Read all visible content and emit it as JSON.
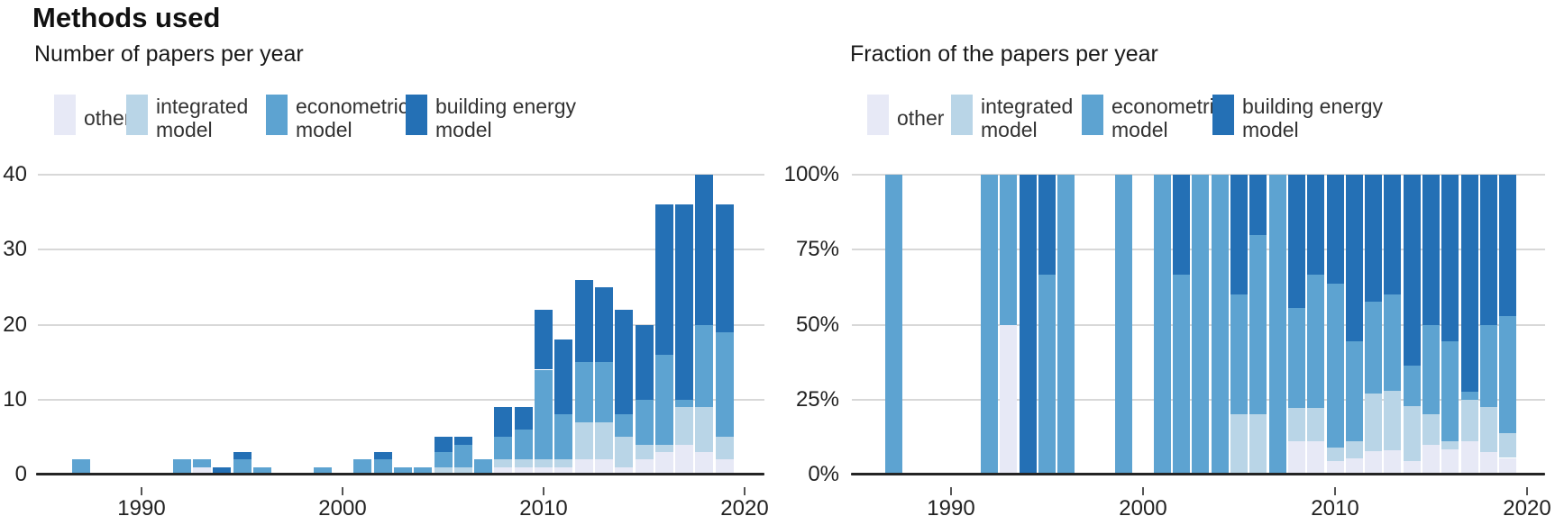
{
  "title": "Methods used",
  "colors": {
    "other": "#e7e9f6",
    "integrated": "#b9d5e7",
    "econometric": "#5da3d1",
    "building": "#2470b5",
    "gridline": "#d8d8d8",
    "axis": "#242424",
    "text": "#1a1a1a"
  },
  "legend": {
    "items": [
      {
        "key": "other",
        "label": "other",
        "label_lines": [
          "other"
        ]
      },
      {
        "key": "integrated",
        "label": "integrated model",
        "label_lines": [
          "integrated",
          "model"
        ]
      },
      {
        "key": "econometric",
        "label": "econometric model",
        "label_lines": [
          "econometric",
          "model"
        ]
      },
      {
        "key": "building",
        "label": "building energy model",
        "label_lines": [
          "building energy",
          "model"
        ]
      }
    ]
  },
  "chart_data": [
    {
      "type": "bar",
      "stacked": true,
      "title": "Number of papers per year",
      "xlabel": "",
      "ylabel": "",
      "ylim": [
        0,
        40
      ],
      "yticks": [
        0,
        10,
        20,
        30,
        40
      ],
      "ytick_labels": [
        "0",
        "10",
        "20",
        "30",
        "40"
      ],
      "xticks": [
        1990,
        2000,
        2010,
        2020
      ],
      "xtick_labels": [
        "1990",
        "2000",
        "2010",
        "2020"
      ],
      "grid": "horizontal",
      "legend_position": "top",
      "series_order": [
        "other",
        "integrated",
        "econometric",
        "building"
      ],
      "bars": [
        {
          "year": 1987,
          "other": 0,
          "integrated": 0,
          "econometric": 2,
          "building": 0
        },
        {
          "year": 1992,
          "other": 0,
          "integrated": 0,
          "econometric": 2,
          "building": 0
        },
        {
          "year": 1993,
          "other": 1,
          "integrated": 0,
          "econometric": 1,
          "building": 0
        },
        {
          "year": 1994,
          "other": 0,
          "integrated": 0,
          "econometric": 0,
          "building": 1
        },
        {
          "year": 1995,
          "other": 0,
          "integrated": 0,
          "econometric": 2,
          "building": 1
        },
        {
          "year": 1996,
          "other": 0,
          "integrated": 0,
          "econometric": 1,
          "building": 0
        },
        {
          "year": 1999,
          "other": 0,
          "integrated": 0,
          "econometric": 1,
          "building": 0
        },
        {
          "year": 2001,
          "other": 0,
          "integrated": 0,
          "econometric": 2,
          "building": 0
        },
        {
          "year": 2002,
          "other": 0,
          "integrated": 0,
          "econometric": 2,
          "building": 1
        },
        {
          "year": 2003,
          "other": 0,
          "integrated": 0,
          "econometric": 1,
          "building": 0
        },
        {
          "year": 2004,
          "other": 0,
          "integrated": 0,
          "econometric": 1,
          "building": 0
        },
        {
          "year": 2005,
          "other": 0,
          "integrated": 1,
          "econometric": 2,
          "building": 2
        },
        {
          "year": 2006,
          "other": 0,
          "integrated": 1,
          "econometric": 3,
          "building": 1
        },
        {
          "year": 2007,
          "other": 0,
          "integrated": 0,
          "econometric": 2,
          "building": 0
        },
        {
          "year": 2008,
          "other": 1,
          "integrated": 1,
          "econometric": 3,
          "building": 4
        },
        {
          "year": 2009,
          "other": 1,
          "integrated": 1,
          "econometric": 4,
          "building": 3
        },
        {
          "year": 2010,
          "other": 1,
          "integrated": 1,
          "econometric": 12,
          "building": 8
        },
        {
          "year": 2011,
          "other": 1,
          "integrated": 1,
          "econometric": 6,
          "building": 10
        },
        {
          "year": 2012,
          "other": 2,
          "integrated": 5,
          "econometric": 8,
          "building": 11
        },
        {
          "year": 2013,
          "other": 2,
          "integrated": 5,
          "econometric": 8,
          "building": 10
        },
        {
          "year": 2014,
          "other": 1,
          "integrated": 4,
          "econometric": 3,
          "building": 14
        },
        {
          "year": 2015,
          "other": 2,
          "integrated": 2,
          "econometric": 6,
          "building": 10
        },
        {
          "year": 2016,
          "other": 3,
          "integrated": 1,
          "econometric": 12,
          "building": 20
        },
        {
          "year": 2017,
          "other": 4,
          "integrated": 5,
          "econometric": 1,
          "building": 26
        },
        {
          "year": 2018,
          "other": 3,
          "integrated": 6,
          "econometric": 11,
          "building": 20
        },
        {
          "year": 2019,
          "other": 2,
          "integrated": 3,
          "econometric": 14,
          "building": 17
        }
      ]
    },
    {
      "type": "bar",
      "stacked": true,
      "normalized": true,
      "title": "Fraction of the papers per year",
      "xlabel": "",
      "ylabel": "",
      "ylim_percent": [
        0,
        100
      ],
      "yticks_percent": [
        0,
        25,
        50,
        75,
        100
      ],
      "ytick_labels": [
        "0%",
        "25%",
        "50%",
        "75%",
        "100%"
      ],
      "xticks": [
        1990,
        2000,
        2010,
        2020
      ],
      "xtick_labels": [
        "1990",
        "2000",
        "2010",
        "2020"
      ],
      "grid": "horizontal",
      "legend_position": "top",
      "series_order": [
        "other",
        "integrated",
        "econometric",
        "building"
      ],
      "bars_ref": 0,
      "note": "Same yearly data as the left chart, each year's stack normalized to 100%"
    }
  ]
}
